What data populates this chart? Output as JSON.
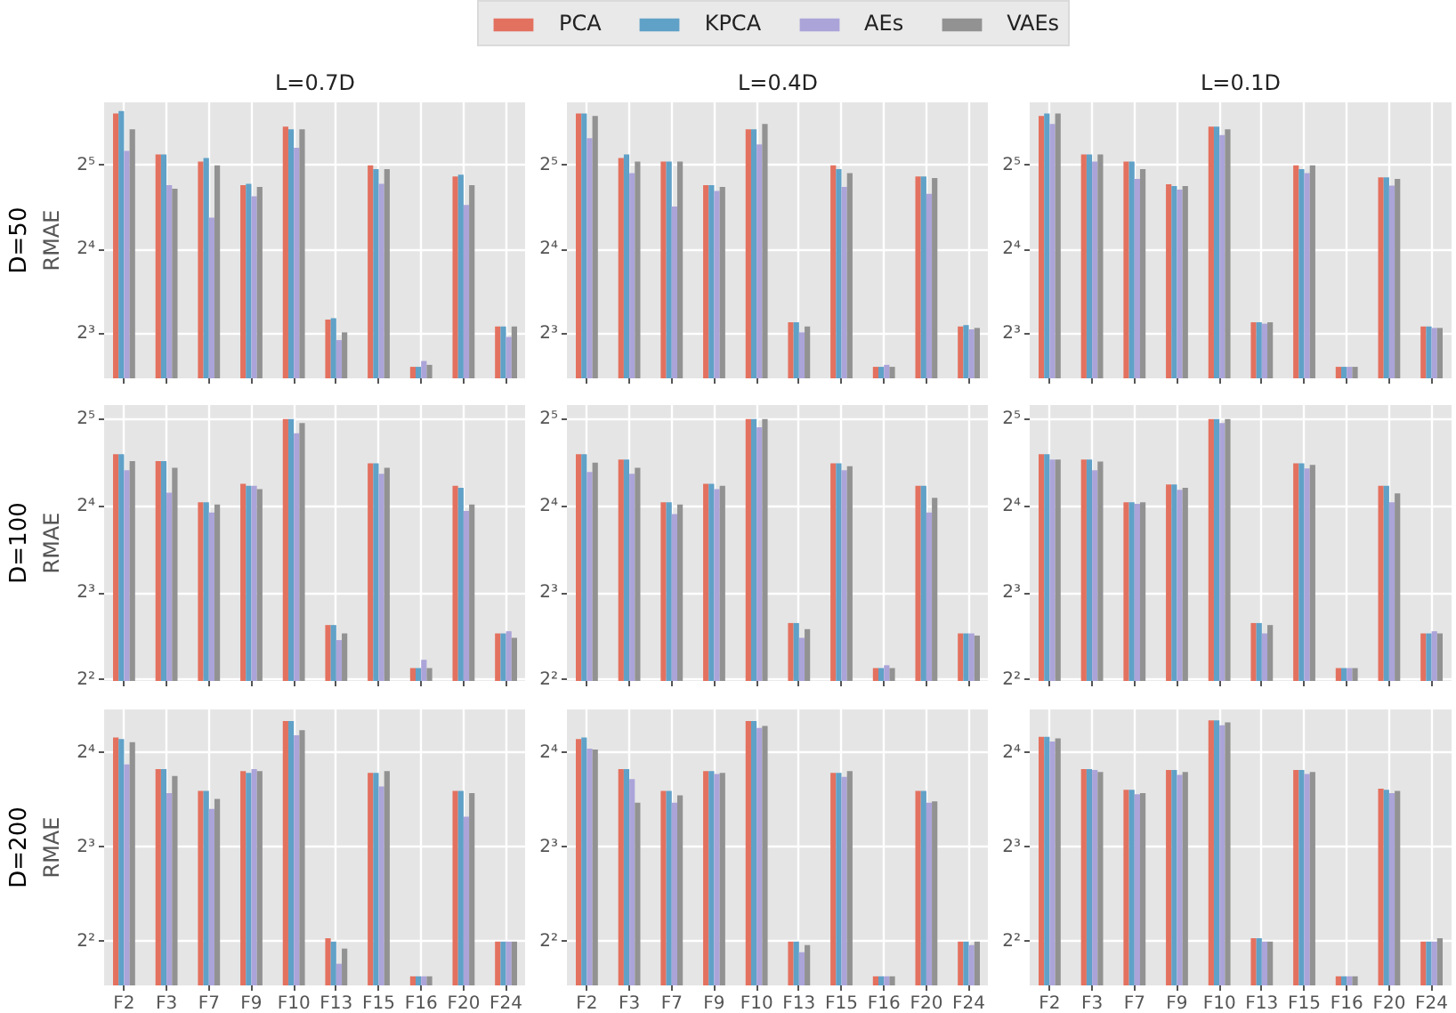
{
  "chart_data": [
    {
      "type": "bar",
      "title": "L=0.7D",
      "ylabel": "RMAE",
      "annotations": [
        "D=50"
      ],
      "categories": [
        "F2",
        "F3",
        "F7",
        "F9",
        "F10",
        "F13",
        "F15",
        "F16",
        "F20",
        "F24"
      ],
      "series": [
        {
          "color": "#e3715f",
          "values": [
            49,
            35,
            33,
            27.2,
            44,
            9.0,
            32,
            6.1,
            29.2,
            8.5
          ]
        },
        {
          "color": "#60a1c7",
          "values": [
            50,
            35,
            34,
            27.5,
            43,
            9.1,
            31,
            6.1,
            29.6,
            8.5
          ]
        },
        {
          "color": "#aba4d9",
          "values": [
            36,
            27.2,
            20.8,
            24.8,
            37,
            7.6,
            27.5,
            6.4,
            23.1,
            7.8
          ]
        },
        {
          "color": "#929292",
          "values": [
            43,
            26.4,
            32,
            26.8,
            43,
            8.1,
            31,
            6.2,
            27.2,
            8.5
          ]
        }
      ],
      "log": true,
      "ylim": [
        5.55,
        53.7
      ],
      "yticks": [
        {
          "value": 8,
          "label": "2³"
        },
        {
          "value": 16,
          "label": "2⁴"
        },
        {
          "value": 32,
          "label": "2⁵"
        }
      ],
      "grid": true,
      "tick_labels": "y"
    },
    {
      "type": "bar",
      "title": "L=0.4D",
      "categories": [
        "F2",
        "F3",
        "F7",
        "F9",
        "F10",
        "F13",
        "F15",
        "F16",
        "F20",
        "F24"
      ],
      "series": [
        {
          "name": "PCA",
          "color": "#e3715f",
          "values": [
            49,
            34,
            33,
            27.2,
            43,
            8.8,
            32,
            6.1,
            29.2,
            8.5
          ]
        },
        {
          "name": "KPCA",
          "color": "#60a1c7",
          "values": [
            49,
            35,
            33,
            27.2,
            43,
            8.8,
            31,
            6.1,
            29.2,
            8.6
          ]
        },
        {
          "name": "AEs",
          "color": "#aba4d9",
          "values": [
            40,
            30,
            22.8,
            25.9,
            38,
            8.1,
            26.8,
            6.2,
            25.3,
            8.3
          ]
        },
        {
          "name": "VAEs",
          "color": "#929292",
          "values": [
            48,
            33,
            33,
            26.8,
            45,
            8.5,
            30,
            6.1,
            28.8,
            8.4
          ]
        }
      ],
      "log": true,
      "ylim": [
        5.55,
        53.7
      ],
      "yticks": [
        {
          "value": 8,
          "label": "2³"
        },
        {
          "value": 16,
          "label": "2⁴"
        },
        {
          "value": 32,
          "label": "2⁵"
        }
      ],
      "grid": true,
      "tick_labels": "y",
      "legend": "top"
    },
    {
      "type": "bar",
      "title": "L=0.1D",
      "categories": [
        "F2",
        "F3",
        "F7",
        "F9",
        "F10",
        "F13",
        "F15",
        "F16",
        "F20",
        "F24"
      ],
      "series": [
        {
          "color": "#e3715f",
          "values": [
            48,
            35,
            33,
            27.4,
            44,
            8.8,
            32,
            6.1,
            29.0,
            8.5
          ]
        },
        {
          "color": "#60a1c7",
          "values": [
            49,
            35,
            33,
            27.0,
            44,
            8.8,
            31,
            6.1,
            29.0,
            8.5
          ]
        },
        {
          "color": "#aba4d9",
          "values": [
            45,
            33,
            28.6,
            26.2,
            41,
            8.7,
            30,
            6.1,
            27.1,
            8.4
          ]
        },
        {
          "color": "#929292",
          "values": [
            49,
            35,
            31,
            27.0,
            43,
            8.8,
            32,
            6.1,
            28.6,
            8.4
          ]
        }
      ],
      "log": true,
      "ylim": [
        5.55,
        53.7
      ],
      "yticks": [
        {
          "value": 8,
          "label": "2³"
        },
        {
          "value": 16,
          "label": "2⁴"
        },
        {
          "value": 32,
          "label": "2⁵"
        }
      ],
      "grid": true,
      "tick_labels": "y"
    },
    {
      "type": "bar",
      "ylabel": "RMAE",
      "annotations": [
        "D=100"
      ],
      "categories": [
        "F2",
        "F3",
        "F7",
        "F9",
        "F10",
        "F13",
        "F15",
        "F16",
        "F20",
        "F24"
      ],
      "series": [
        {
          "color": "#e3715f",
          "values": [
            24.2,
            22.9,
            16.5,
            19.1,
            32,
            6.2,
            22.5,
            4.4,
            18.8,
            5.8
          ]
        },
        {
          "color": "#60a1c7",
          "values": [
            24.2,
            22.9,
            16.5,
            18.8,
            32,
            6.2,
            22.5,
            4.4,
            18.5,
            5.8
          ]
        },
        {
          "color": "#aba4d9",
          "values": [
            21.3,
            17.8,
            15.2,
            18.8,
            28.6,
            5.5,
            20.7,
            4.7,
            15.4,
            5.9
          ]
        },
        {
          "color": "#929292",
          "values": [
            22.9,
            21.7,
            16.2,
            18.3,
            31,
            5.8,
            21.7,
            4.4,
            16.2,
            5.6
          ]
        }
      ],
      "log": true,
      "ylim": [
        3.97,
        35.8
      ],
      "yticks": [
        {
          "value": 4,
          "label": "2²"
        },
        {
          "value": 8,
          "label": "2³"
        },
        {
          "value": 16,
          "label": "2⁴"
        },
        {
          "value": 32,
          "label": "2⁵"
        }
      ],
      "grid": true,
      "tick_labels": "y"
    },
    {
      "type": "bar",
      "categories": [
        "F2",
        "F3",
        "F7",
        "F9",
        "F10",
        "F13",
        "F15",
        "F16",
        "F20",
        "F24"
      ],
      "series": [
        {
          "color": "#e3715f",
          "values": [
            24.2,
            23.2,
            16.5,
            19.1,
            32,
            6.3,
            22.5,
            4.4,
            18.8,
            5.8
          ]
        },
        {
          "color": "#60a1c7",
          "values": [
            24.2,
            23.2,
            16.5,
            19.1,
            32,
            6.3,
            22.5,
            4.4,
            18.8,
            5.8
          ]
        },
        {
          "color": "#aba4d9",
          "values": [
            21.0,
            20.7,
            15.0,
            18.3,
            30,
            5.6,
            21.3,
            4.5,
            15.2,
            5.8
          ]
        },
        {
          "color": "#929292",
          "values": [
            22.6,
            21.7,
            16.2,
            18.8,
            32,
            6.0,
            22.0,
            4.4,
            17.1,
            5.7
          ]
        }
      ],
      "log": true,
      "ylim": [
        3.97,
        35.8
      ],
      "yticks": [
        {
          "value": 4,
          "label": "2²"
        },
        {
          "value": 8,
          "label": "2³"
        },
        {
          "value": 16,
          "label": "2⁴"
        },
        {
          "value": 32,
          "label": "2⁵"
        }
      ],
      "grid": true,
      "tick_labels": "y"
    },
    {
      "type": "bar",
      "categories": [
        "F2",
        "F3",
        "F7",
        "F9",
        "F10",
        "F13",
        "F15",
        "F16",
        "F20",
        "F24"
      ],
      "series": [
        {
          "color": "#e3715f",
          "values": [
            24.2,
            23.2,
            16.5,
            19.0,
            32,
            6.3,
            22.5,
            4.4,
            18.8,
            5.8
          ]
        },
        {
          "color": "#60a1c7",
          "values": [
            24.2,
            23.2,
            16.5,
            19.0,
            32,
            6.3,
            22.5,
            4.4,
            18.8,
            5.8
          ]
        },
        {
          "color": "#aba4d9",
          "values": [
            23.2,
            21.3,
            16.3,
            18.2,
            31,
            5.8,
            21.6,
            4.4,
            16.5,
            5.9
          ]
        },
        {
          "color": "#929292",
          "values": [
            23.2,
            22.8,
            16.5,
            18.5,
            32,
            6.2,
            22.2,
            4.4,
            17.7,
            5.8
          ]
        }
      ],
      "log": true,
      "ylim": [
        3.97,
        35.8
      ],
      "yticks": [
        {
          "value": 4,
          "label": "2²"
        },
        {
          "value": 8,
          "label": "2³"
        },
        {
          "value": 16,
          "label": "2⁴"
        },
        {
          "value": 32,
          "label": "2⁵"
        }
      ],
      "grid": true,
      "tick_labels": "y"
    },
    {
      "type": "bar",
      "ylabel": "RMAE",
      "annotations": [
        "D=200"
      ],
      "categories": [
        "F2",
        "F3",
        "F7",
        "F9",
        "F10",
        "F13",
        "F15",
        "F16",
        "F20",
        "F24"
      ],
      "series": [
        {
          "color": "#e3715f",
          "values": [
            17.9,
            14.2,
            12.1,
            14.0,
            20.2,
            4.1,
            13.8,
            3.1,
            12.1,
            4.0
          ]
        },
        {
          "color": "#60a1c7",
          "values": [
            17.7,
            14.2,
            12.1,
            13.8,
            20.2,
            4.0,
            13.8,
            3.1,
            12.1,
            4.0
          ]
        },
        {
          "color": "#aba4d9",
          "values": [
            14.7,
            11.9,
            10.6,
            14.2,
            18.2,
            3.4,
            12.5,
            3.1,
            10.0,
            4.0
          ]
        },
        {
          "color": "#929292",
          "values": [
            17.3,
            13.5,
            11.4,
            14.0,
            18.9,
            3.8,
            14.0,
            3.1,
            11.9,
            4.0
          ]
        }
      ],
      "log": true,
      "ylim": [
        2.9,
        22
      ],
      "yticks": [
        {
          "value": 4,
          "label": "2²"
        },
        {
          "value": 8,
          "label": "2³"
        },
        {
          "value": 16,
          "label": "2⁴"
        }
      ],
      "grid": true
    },
    {
      "type": "bar",
      "categories": [
        "F2",
        "F3",
        "F7",
        "F9",
        "F10",
        "F13",
        "F15",
        "F16",
        "F20",
        "F24"
      ],
      "series": [
        {
          "color": "#e3715f",
          "values": [
            17.7,
            14.2,
            12.1,
            14.0,
            20.2,
            4.0,
            13.8,
            3.1,
            12.1,
            4.0
          ]
        },
        {
          "color": "#60a1c7",
          "values": [
            17.9,
            14.2,
            12.1,
            14.0,
            20.2,
            4.0,
            13.8,
            3.1,
            12.1,
            4.0
          ]
        },
        {
          "color": "#aba4d9",
          "values": [
            16.5,
            13.2,
            11.1,
            13.7,
            19.2,
            3.7,
            13.4,
            3.1,
            11.1,
            3.9
          ]
        },
        {
          "color": "#929292",
          "values": [
            16.4,
            11.1,
            11.7,
            13.8,
            19.5,
            3.9,
            14.0,
            3.1,
            11.2,
            4.0
          ]
        }
      ],
      "log": true,
      "ylim": [
        2.9,
        22
      ],
      "yticks": [
        {
          "value": 4,
          "label": "2²"
        },
        {
          "value": 8,
          "label": "2³"
        },
        {
          "value": 16,
          "label": "2⁴"
        }
      ],
      "grid": true
    },
    {
      "type": "bar",
      "categories": [
        "F2",
        "F3",
        "F7",
        "F9",
        "F10",
        "F13",
        "F15",
        "F16",
        "F20",
        "F24"
      ],
      "series": [
        {
          "color": "#e3715f",
          "values": [
            18.0,
            14.2,
            12.2,
            14.1,
            20.3,
            4.1,
            14.1,
            3.1,
            12.3,
            4.0
          ]
        },
        {
          "color": "#60a1c7",
          "values": [
            18.0,
            14.2,
            12.2,
            14.1,
            20.3,
            4.1,
            14.1,
            3.1,
            12.2,
            4.0
          ]
        },
        {
          "color": "#aba4d9",
          "values": [
            17.4,
            14.1,
            11.8,
            13.6,
            19.6,
            4.0,
            13.7,
            3.1,
            11.9,
            4.0
          ]
        },
        {
          "color": "#929292",
          "values": [
            17.8,
            13.9,
            11.9,
            13.9,
            20.0,
            4.0,
            13.9,
            3.1,
            12.1,
            4.1
          ]
        }
      ],
      "log": true,
      "ylim": [
        2.9,
        22
      ],
      "yticks": [
        {
          "value": 4,
          "label": "2²"
        },
        {
          "value": 8,
          "label": "2³"
        },
        {
          "value": 16,
          "label": "2⁴"
        }
      ],
      "grid": true
    }
  ]
}
